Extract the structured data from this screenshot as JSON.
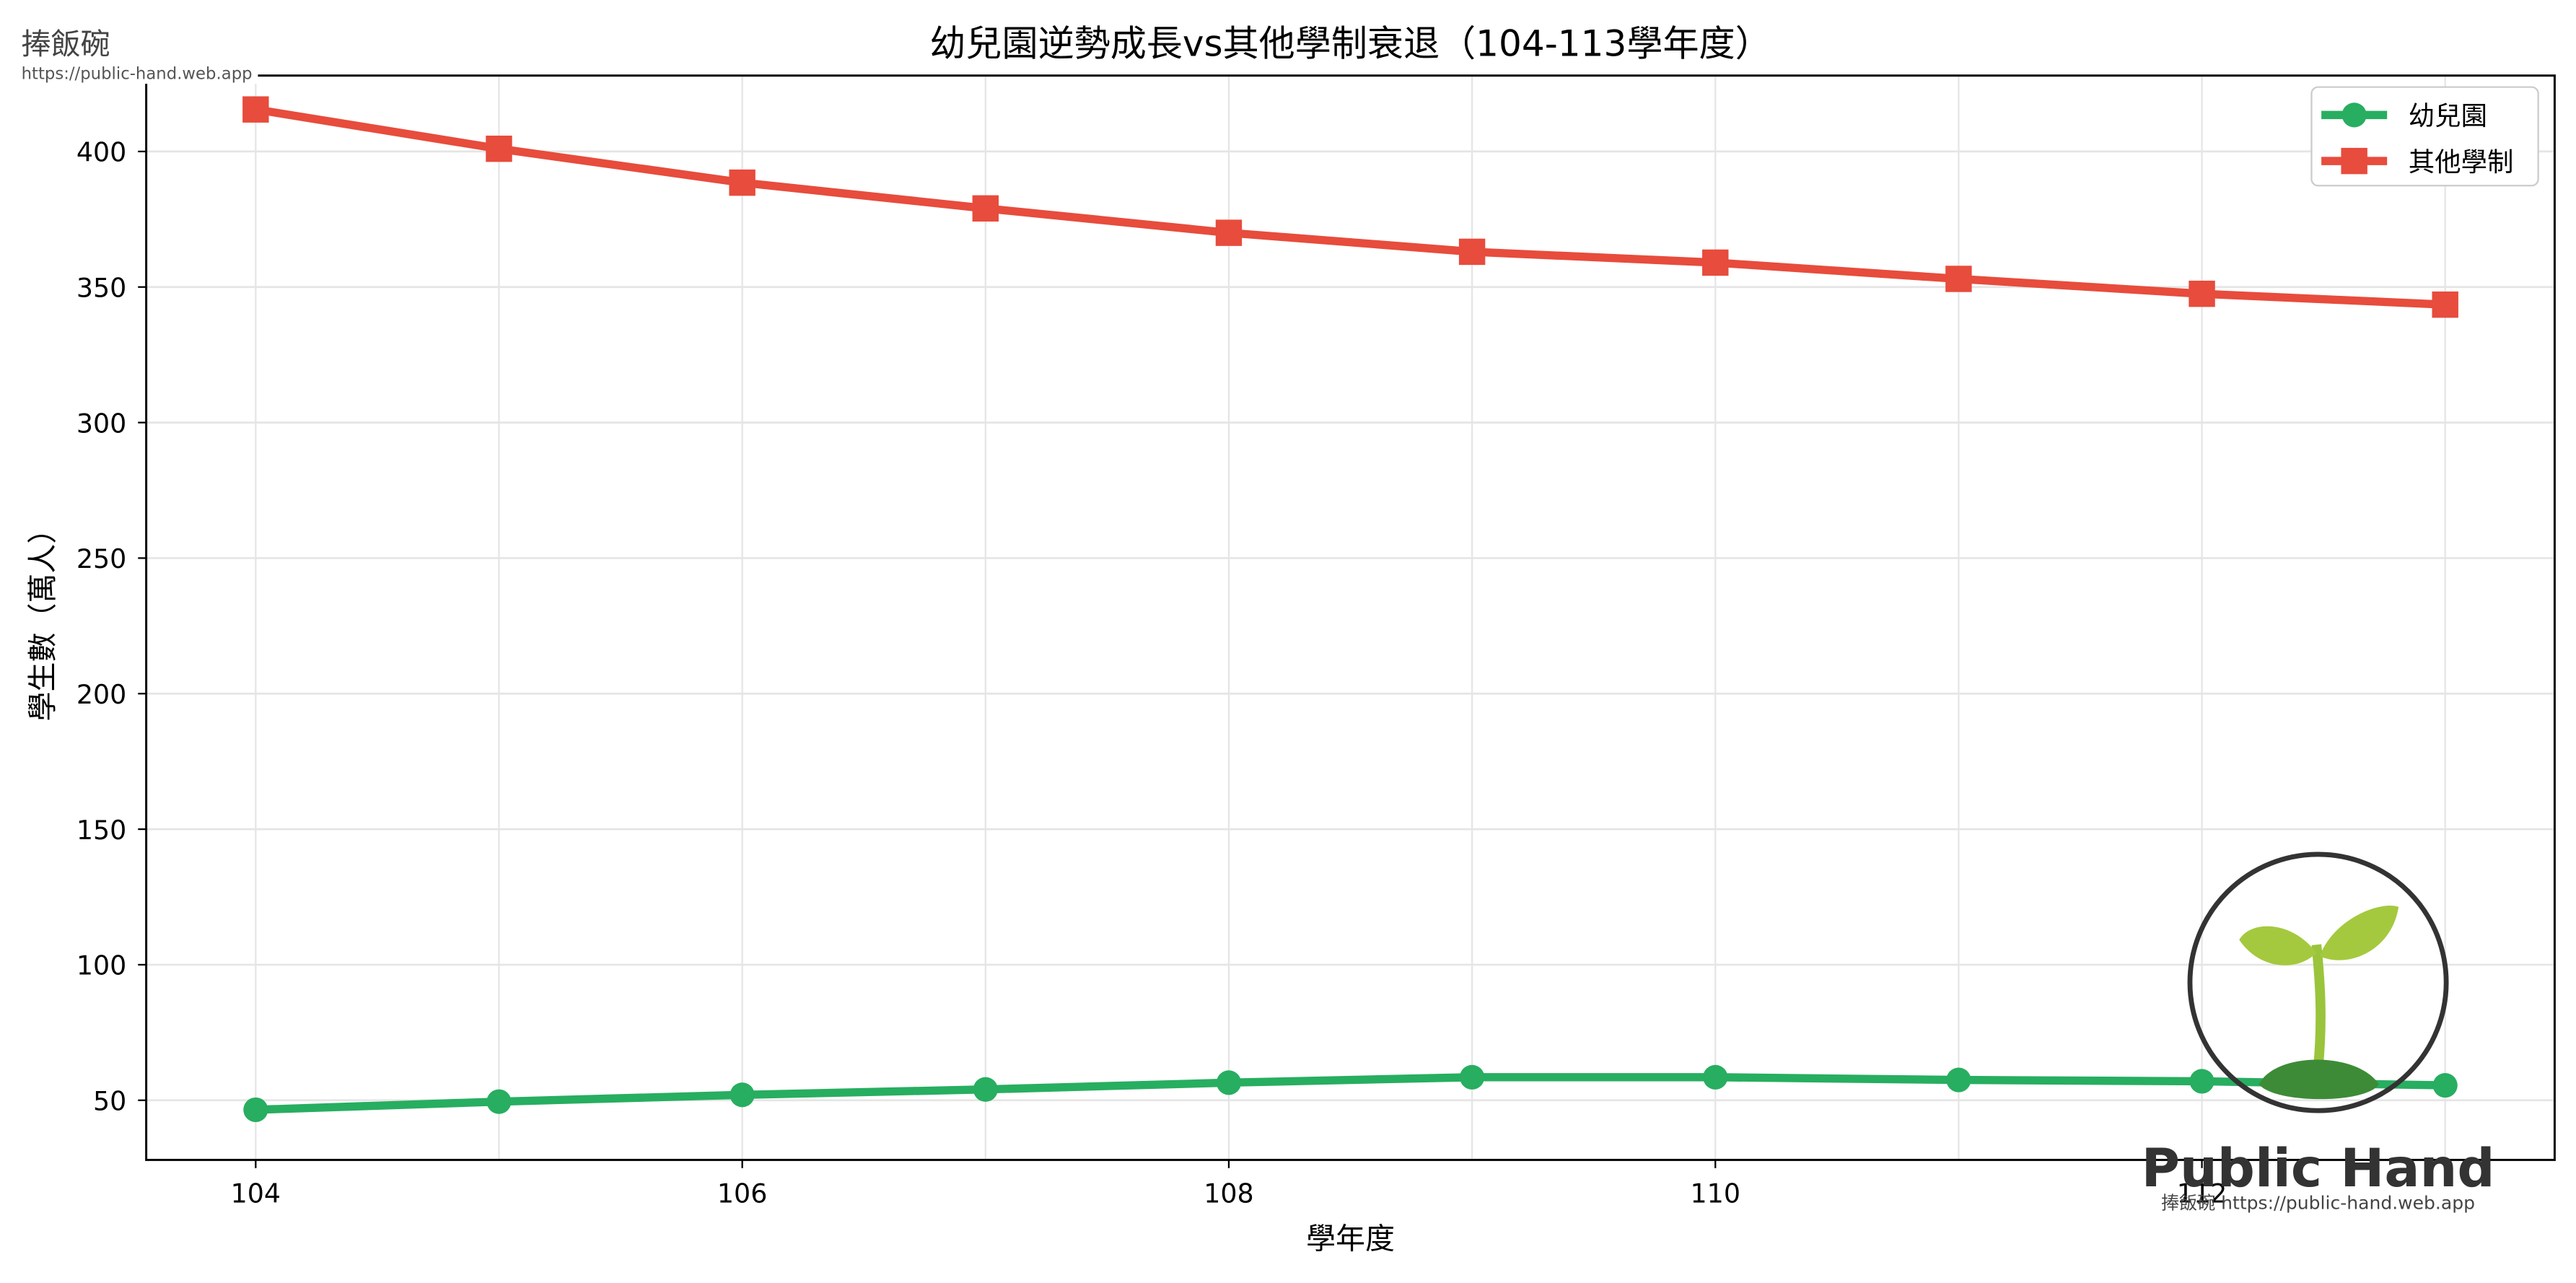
{
  "watermark": {
    "site_name": "捧飯碗",
    "url": "https://public-hand.web.app",
    "logo_text": "Public Hand",
    "logo_subtext": "捧飯碗 https://public-hand.web.app"
  },
  "colors": {
    "kindergarten": "#27ae60",
    "others": "#e74c3c",
    "grid": "#e5e5e5",
    "axis": "#000000"
  },
  "chart_data": {
    "type": "line",
    "title": "幼兒園逆勢成長vs其他學制衰退（104-113學年度）",
    "xlabel": "學年度",
    "ylabel": "學生數（萬人）",
    "x": [
      104,
      105,
      106,
      107,
      108,
      109,
      110,
      111,
      112,
      113
    ],
    "xticks": [
      104,
      106,
      108,
      110,
      112
    ],
    "yticks": [
      50,
      100,
      150,
      200,
      250,
      300,
      350,
      400
    ],
    "xlim": [
      103.55,
      113.45
    ],
    "ylim": [
      28,
      428
    ],
    "grid": true,
    "legend_position": "upper right",
    "series": [
      {
        "name": "幼兒園",
        "marker": "circle",
        "color": "#27ae60",
        "values": [
          46.5,
          49.5,
          52,
          54,
          56.5,
          58.5,
          58.5,
          57.5,
          57,
          55.5
        ]
      },
      {
        "name": "其他學制",
        "marker": "square",
        "color": "#e74c3c",
        "values": [
          415.5,
          401,
          388.5,
          379,
          370,
          363,
          359,
          353,
          347.5,
          343.5
        ]
      }
    ]
  }
}
